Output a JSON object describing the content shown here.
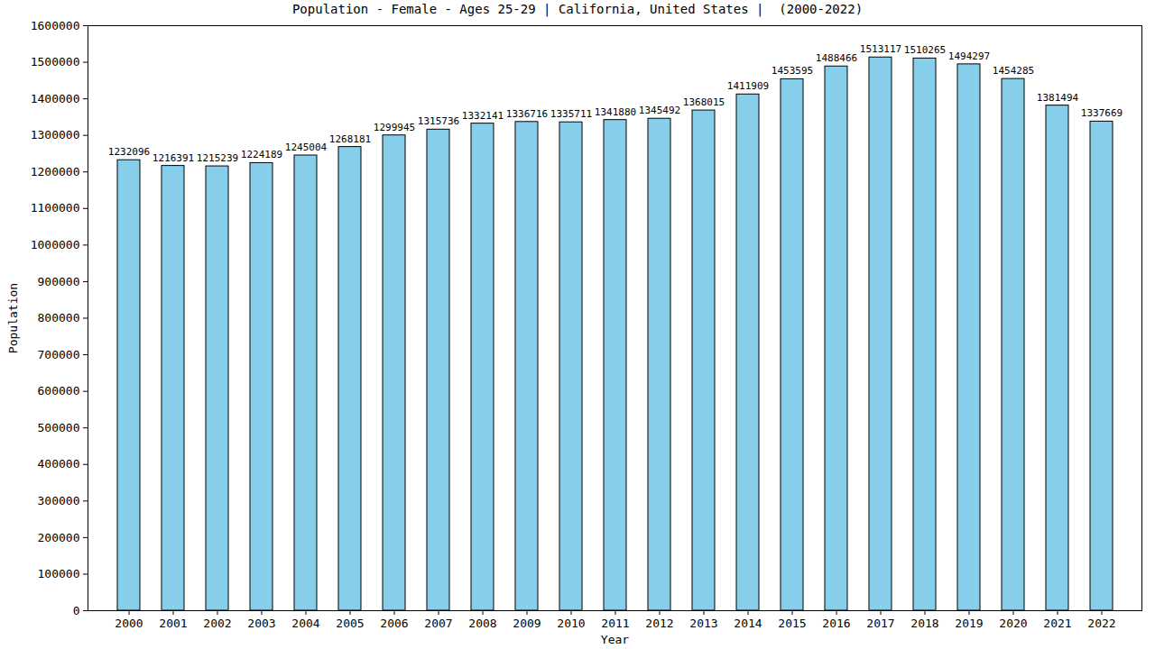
{
  "chart_data": {
    "type": "bar",
    "title": "Population - Female - Ages 25-29 | California, United States |  (2000-2022)",
    "x_label": "Year",
    "y_label": "Population",
    "categories": [
      "2000",
      "2001",
      "2002",
      "2003",
      "2004",
      "2005",
      "2006",
      "2007",
      "2008",
      "2009",
      "2010",
      "2011",
      "2012",
      "2013",
      "2014",
      "2015",
      "2016",
      "2017",
      "2018",
      "2019",
      "2020",
      "2021",
      "2022"
    ],
    "values": [
      1232096,
      1216391,
      1215239,
      1224189,
      1245004,
      1268181,
      1299945,
      1315736,
      1332141,
      1336716,
      1335711,
      1341880,
      1345492,
      1368015,
      1411909,
      1453595,
      1488466,
      1513117,
      1510265,
      1494297,
      1454285,
      1381494,
      1337669
    ],
    "color": "#87ceeb",
    "ylim": [
      0,
      1600000
    ],
    "yticks": [
      0,
      100000,
      200000,
      300000,
      400000,
      500000,
      600000,
      700000,
      800000,
      900000,
      1000000,
      1100000,
      1200000,
      1300000,
      1400000,
      1500000,
      1600000
    ],
    "grid": false,
    "data_labels": true
  }
}
